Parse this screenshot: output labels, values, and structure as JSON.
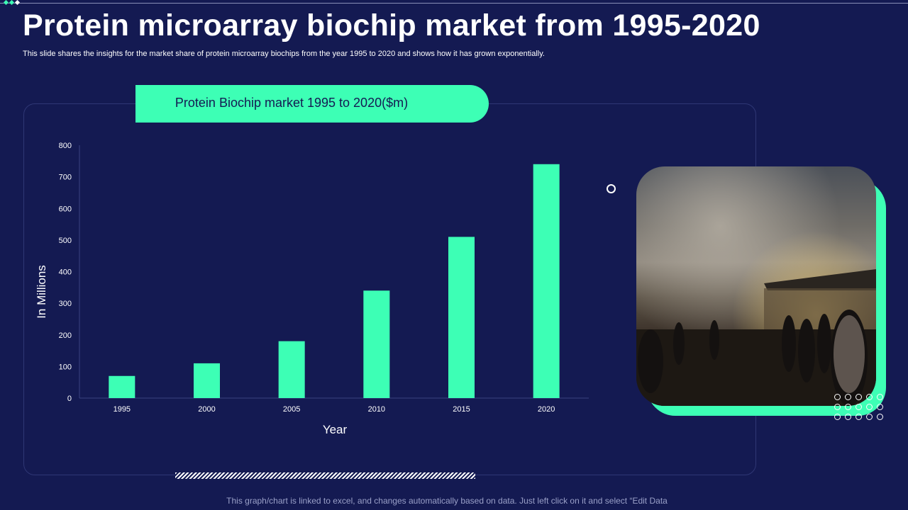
{
  "slide": {
    "title": "Protein microarray biochip market from 1995-2020",
    "subtitle": "This slide shares the insights for the market share of protein microarray biochips from the year  1995 to 2020 and shows how it has grown exponentially.",
    "chart_header": "Protein Biochip market 1995 to 2020($m)",
    "footer": "This graph/chart is linked to excel, and changes automatically based on data. Just left click on it and select “Edit Data"
  },
  "colors": {
    "background": "#141a52",
    "accent": "#3dffb5",
    "text": "#ffffff"
  },
  "chart_data": {
    "type": "bar",
    "categories": [
      "1995",
      "2000",
      "2005",
      "2010",
      "2015",
      "2020"
    ],
    "values": [
      70,
      110,
      180,
      340,
      510,
      740
    ],
    "title": "",
    "xlabel": "Year",
    "ylabel": "In Millions",
    "ylim": [
      0,
      800
    ],
    "yticks": [
      "0",
      "100",
      "200",
      "300",
      "400",
      "500",
      "600",
      "700",
      "800"
    ],
    "grid": false,
    "legend": "none",
    "bar_color": "#3dffb5"
  },
  "image": {
    "description_icon": "photo-night-market-icon"
  }
}
